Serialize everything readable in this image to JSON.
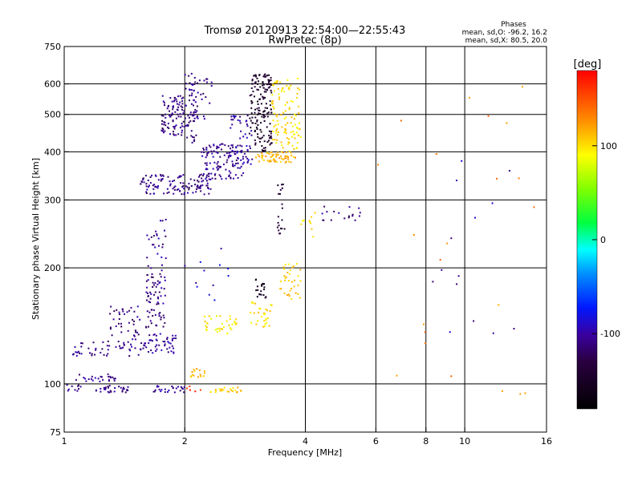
{
  "chart_data": {
    "type": "scatter",
    "title": "Tromsø 20120913 22:54:00—22:55:43",
    "subtitle": "RwPretec (8p)",
    "stats": {
      "title": "Phases",
      "line1": "mean, sd,O: -96.2, 16.2",
      "line2": "mean, sd,X: 80.5, 20.0"
    },
    "xlabel": "Frequency [MHz]",
    "ylabel": "Stationary phase Virtual Height [km]",
    "xscale": "log2",
    "yscale": "log",
    "xlim": [
      1,
      16
    ],
    "ylim": [
      75,
      750
    ],
    "xticks": [
      1,
      2,
      4,
      6,
      8,
      10,
      16
    ],
    "yticks": [
      75,
      100,
      200,
      300,
      400,
      500,
      600,
      750
    ],
    "grid_x": [
      2,
      4,
      6,
      8,
      10
    ],
    "grid_y": [
      100,
      200,
      300,
      400,
      500,
      600
    ],
    "colorbar": {
      "label": "[deg]",
      "range": [
        -180,
        180
      ],
      "ticks": [
        100,
        0,
        -100
      ]
    },
    "clusters": [
      {
        "xr": [
          1.0,
          1.1
        ],
        "yr": [
          95,
          100
        ],
        "phase": -110,
        "n": 10
      },
      {
        "xr": [
          1.07,
          1.35
        ],
        "yr": [
          101,
          106
        ],
        "phase": -105,
        "n": 25
      },
      {
        "xr": [
          1.2,
          1.5
        ],
        "yr": [
          95,
          99
        ],
        "phase": -110,
        "n": 30
      },
      {
        "xr": [
          1.6,
          2.0
        ],
        "yr": [
          95,
          99
        ],
        "phase": -105,
        "n": 25
      },
      {
        "xr": [
          1.05,
          1.6
        ],
        "yr": [
          118,
          130
        ],
        "phase": -108,
        "n": 55
      },
      {
        "xr": [
          1.3,
          1.55
        ],
        "yr": [
          130,
          160
        ],
        "phase": -110,
        "n": 40
      },
      {
        "xr": [
          1.6,
          1.9
        ],
        "yr": [
          120,
          135
        ],
        "phase": -105,
        "n": 45
      },
      {
        "xr": [
          1.6,
          1.8
        ],
        "yr": [
          140,
          200
        ],
        "phase": -110,
        "n": 70
      },
      {
        "xr": [
          1.6,
          1.8
        ],
        "yr": [
          200,
          270
        ],
        "phase": -105,
        "n": 25
      },
      {
        "xr": [
          1.55,
          2.35
        ],
        "yr": [
          310,
          350
        ],
        "phase": -108,
        "n": 120
      },
      {
        "xr": [
          2.2,
          2.8
        ],
        "yr": [
          340,
          420
        ],
        "phase": -105,
        "n": 120
      },
      {
        "xr": [
          1.75,
          2.0
        ],
        "yr": [
          440,
          560
        ],
        "phase": -110,
        "n": 90
      },
      {
        "xr": [
          2.0,
          2.15
        ],
        "yr": [
          420,
          640
        ],
        "phase": -110,
        "n": 50
      },
      {
        "xr": [
          2.05,
          2.35
        ],
        "yr": [
          480,
          620
        ],
        "phase": -108,
        "n": 30
      },
      {
        "xr": [
          2.6,
          2.95
        ],
        "yr": [
          370,
          500
        ],
        "phase": -100,
        "n": 50
      },
      {
        "xr": [
          2.9,
          3.3
        ],
        "yr": [
          400,
          640
        ],
        "phase": -145,
        "n": 160
      },
      {
        "xr": [
          3.0,
          3.8
        ],
        "yr": [
          375,
          400
        ],
        "phase": 115,
        "n": 60
      },
      {
        "xr": [
          3.3,
          3.9
        ],
        "yr": [
          400,
          620
        ],
        "phase": 100,
        "n": 110
      },
      {
        "xr": [
          2.05,
          2.25
        ],
        "yr": [
          104,
          110
        ],
        "phase": 110,
        "n": 15
      },
      {
        "xr": [
          2.2,
          2.7
        ],
        "yr": [
          135,
          150
        ],
        "phase": 95,
        "n": 35
      },
      {
        "xr": [
          2.9,
          3.3
        ],
        "yr": [
          140,
          165
        ],
        "phase": 100,
        "n": 30
      },
      {
        "xr": [
          3.45,
          3.9
        ],
        "yr": [
          165,
          205
        ],
        "phase": 105,
        "n": 35
      },
      {
        "xr": [
          2.3,
          2.8
        ],
        "yr": [
          95,
          98
        ],
        "phase": 105,
        "n": 25
      },
      {
        "xr": [
          2.0,
          2.2
        ],
        "yr": [
          95,
          99
        ],
        "phase": 170,
        "n": 5
      },
      {
        "xr": [
          3.0,
          3.2
        ],
        "yr": [
          165,
          190
        ],
        "phase": -150,
        "n": 20
      },
      {
        "xr": [
          3.4,
          3.55
        ],
        "yr": [
          245,
          330
        ],
        "phase": -140,
        "n": 20
      },
      {
        "xr": [
          4.4,
          5.5
        ],
        "yr": [
          265,
          290
        ],
        "phase": -110,
        "n": 18
      },
      {
        "xr": [
          3.8,
          4.3
        ],
        "yr": [
          240,
          280
        ],
        "phase": 100,
        "n": 10
      },
      {
        "xr": [
          2.0,
          2.6
        ],
        "yr": [
          160,
          230
        ],
        "phase": -90,
        "n": 12
      },
      {
        "xr": [
          6.0,
          15.0
        ],
        "yr": [
          90,
          700
        ],
        "phase": 130,
        "n": 22
      },
      {
        "xr": [
          8.0,
          14.0
        ],
        "yr": [
          130,
          560
        ],
        "phase": -100,
        "n": 14
      }
    ]
  }
}
